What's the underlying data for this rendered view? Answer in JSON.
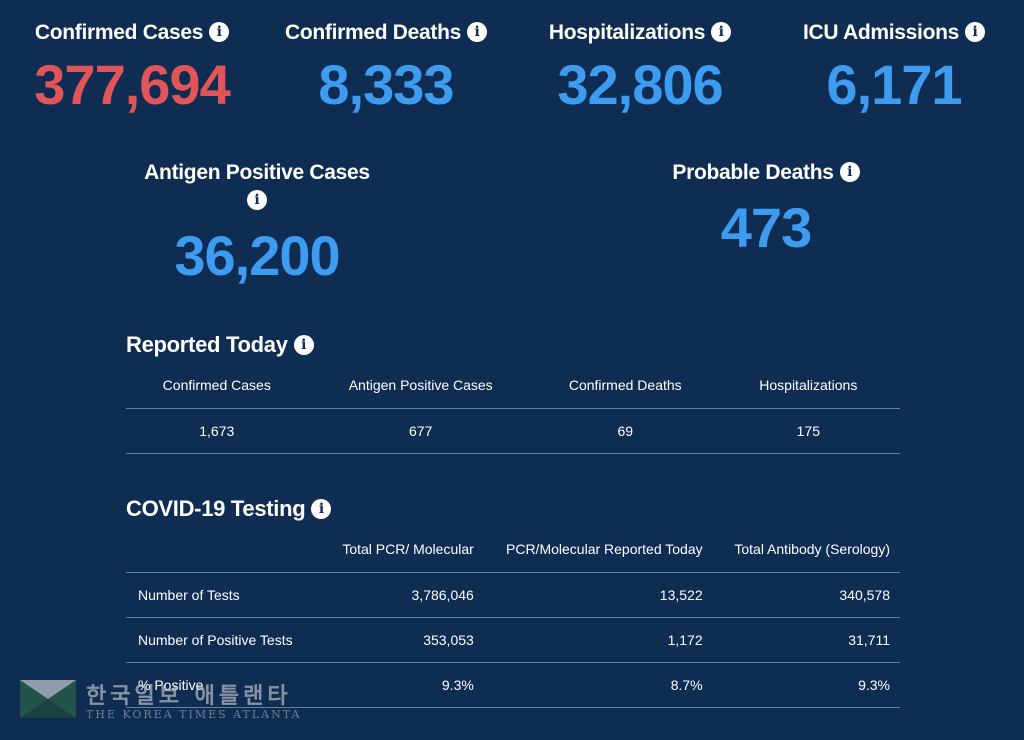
{
  "top_stats": [
    {
      "label": "Confirmed Cases",
      "value": "377,694",
      "info": "i"
    },
    {
      "label": "Confirmed Deaths",
      "value": "8,333",
      "info": "i"
    },
    {
      "label": "Hospitalizations",
      "value": "32,806",
      "info": "i"
    },
    {
      "label": "ICU Admissions",
      "value": "6,171",
      "info": "i"
    }
  ],
  "mid_stats": [
    {
      "label": "Antigen Positive Cases",
      "value": "36,200",
      "info": "i"
    },
    {
      "label": "Probable Deaths",
      "value": "473",
      "info": "i"
    }
  ],
  "reported_today": {
    "title": "Reported Today",
    "info": "i",
    "headers": [
      "Confirmed Cases",
      "Antigen Positive Cases",
      "Confirmed Deaths",
      "Hospitalizations"
    ],
    "values": [
      "1,673",
      "677",
      "69",
      "175"
    ]
  },
  "testing": {
    "title": "COVID-19 Testing",
    "info": "i",
    "headers": [
      "",
      "Total PCR/ Molecular",
      "PCR/Molecular Reported Today",
      "Total Antibody (Serology)"
    ],
    "rows": [
      {
        "label": "Number of Tests",
        "values": [
          "3,786,046",
          "13,522",
          "340,578"
        ]
      },
      {
        "label": "Number of Positive Tests",
        "values": [
          "353,053",
          "1,172",
          "31,711"
        ]
      },
      {
        "label": "% Positive",
        "values": [
          "9.3%",
          "8.7%",
          "9.3%"
        ]
      }
    ]
  },
  "watermark": {
    "korean": "한국일보 애틀랜타",
    "english": "THE KOREA TIMES ATLANTA"
  },
  "colors": {
    "background": "#0f2c52",
    "accent_blue": "#3d9bf0",
    "accent_red": "#e15559",
    "divider": "#6a7f9c"
  }
}
